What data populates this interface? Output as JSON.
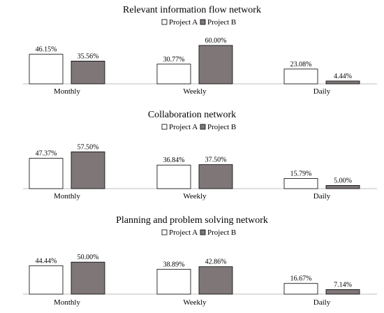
{
  "chart_data": [
    {
      "type": "bar",
      "title": "Relevant information flow network",
      "categories": [
        "Monthly",
        "Weekly",
        "Daily"
      ],
      "series": [
        {
          "name": "Project A",
          "values": [
            46.15,
            30.77,
            23.08
          ],
          "labels": [
            "46.15%",
            "30.77%",
            "23.08%"
          ]
        },
        {
          "name": "Project B",
          "values": [
            35.56,
            60.0,
            4.44
          ],
          "labels": [
            "35.56%",
            "60.00%",
            "4.44%"
          ]
        }
      ],
      "ylim": [
        0,
        60
      ],
      "legend": "top",
      "grid": false
    },
    {
      "type": "bar",
      "title": "Collaboration network",
      "categories": [
        "Monthly",
        "Weekly",
        "Daily"
      ],
      "series": [
        {
          "name": "Project A",
          "values": [
            47.37,
            36.84,
            15.79
          ],
          "labels": [
            "47.37%",
            "36.84%",
            "15.79%"
          ]
        },
        {
          "name": "Project B",
          "values": [
            57.5,
            37.5,
            5.0
          ],
          "labels": [
            "57.50%",
            "37.50%",
            "5.00%"
          ]
        }
      ],
      "ylim": [
        0,
        60
      ],
      "legend": "top",
      "grid": false
    },
    {
      "type": "bar",
      "title": "Planning and problem solving network",
      "categories": [
        "Monthly",
        "Weekly",
        "Daily"
      ],
      "series": [
        {
          "name": "Project A",
          "values": [
            44.44,
            38.89,
            16.67
          ],
          "labels": [
            "44.44%",
            "38.89%",
            "16.67%"
          ]
        },
        {
          "name": "Project B",
          "values": [
            50.0,
            42.86,
            7.14
          ],
          "labels": [
            "50.00%",
            "42.86%",
            "7.14%"
          ]
        }
      ],
      "ylim": [
        0,
        60
      ],
      "legend": "top",
      "grid": false
    }
  ],
  "colors": {
    "project_a_fill": "#ffffff",
    "project_b_fill": "#7f7777",
    "bar_stroke": "#000000"
  }
}
